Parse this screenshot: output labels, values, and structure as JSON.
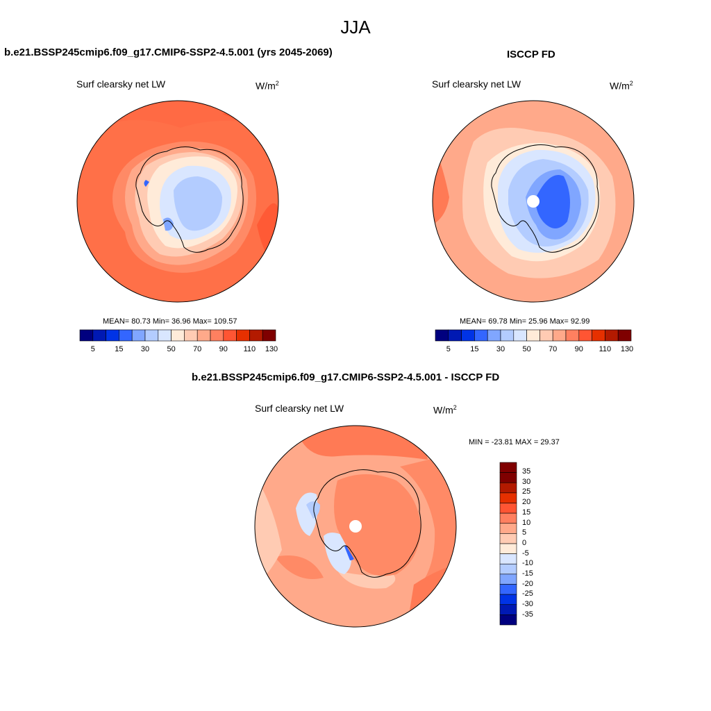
{
  "figure_title": "JJA",
  "colors": {
    "abs_levels": [
      "#00007f",
      "#0019b3",
      "#0033e6",
      "#3366ff",
      "#80a6ff",
      "#b3ccff",
      "#d9e6ff",
      "#ffebd9",
      "#ffcbb3",
      "#ffa98a",
      "#ff8060",
      "#ff5533",
      "#e63000",
      "#b31a00",
      "#7f0000"
    ],
    "diff_levels": [
      "#00007f",
      "#0019b3",
      "#0033e6",
      "#3366ff",
      "#80a6ff",
      "#b3ccff",
      "#d9e6ff",
      "#ffebd9",
      "#ffcbb3",
      "#ffa98a",
      "#ff8060",
      "#ff5533",
      "#e63000",
      "#b31a00",
      "#7f0000"
    ]
  },
  "panels": [
    {
      "title": "b.e21.BSSP245cmip6.f09_g17.CMIP6-SSP2-4.5.001 (yrs 2045-2069)",
      "variable": "Surf clearsky net LW",
      "units": "W/m",
      "units_exp": "2",
      "stats": "MEAN=  80.73  Min=  36.96  Max= 109.57",
      "colorbar_ticks": [
        "5",
        "15",
        "30",
        "50",
        "70",
        "90",
        "110",
        "130"
      ]
    },
    {
      "title": "ISCCP FD",
      "variable": "Surf clearsky net LW",
      "units": "W/m",
      "units_exp": "2",
      "stats": "MEAN=  69.78  Min=  25.96  Max=  92.99",
      "colorbar_ticks": [
        "5",
        "15",
        "30",
        "50",
        "70",
        "90",
        "110",
        "130"
      ]
    },
    {
      "title": "b.e21.BSSP245cmip6.f09_g17.CMIP6-SSP2-4.5.001 - ISCCP FD",
      "variable": "Surf clearsky net LW",
      "units": "W/m",
      "units_exp": "2",
      "stats": "MIN = -23.81 MAX =  29.37",
      "colorbar_ticks": [
        "35",
        "30",
        "25",
        "20",
        "15",
        "10",
        "5",
        "0",
        "-5",
        "-10",
        "-15",
        "-20",
        "-25",
        "-30",
        "-35"
      ]
    }
  ]
}
